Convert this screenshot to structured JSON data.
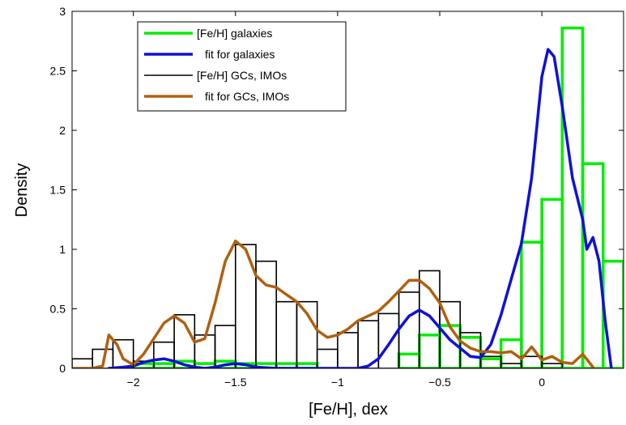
{
  "chart_data": {
    "type": "histogram",
    "xlabel": "[Fe/H], dex",
    "ylabel": "Density",
    "xlim": [
      -2.3,
      0.4
    ],
    "ylim": [
      0,
      3
    ],
    "xticks": [
      {
        "value": -2,
        "label": "−2"
      },
      {
        "value": -1.5,
        "label": "−1.5"
      },
      {
        "value": -1,
        "label": "−1"
      },
      {
        "value": -0.5,
        "label": "−0.5"
      },
      {
        "value": 0,
        "label": "0"
      }
    ],
    "yticks": [
      {
        "value": 0,
        "label": "0"
      },
      {
        "value": 0.5,
        "label": "0.5"
      },
      {
        "value": 1,
        "label": "1"
      },
      {
        "value": 1.5,
        "label": "1.5"
      },
      {
        "value": 2,
        "label": "2"
      },
      {
        "value": 2.5,
        "label": "2.5"
      },
      {
        "value": 3,
        "label": "3"
      }
    ],
    "grid": false,
    "legend_position": "top-left",
    "series": [
      {
        "name": "[Fe/H] galaxies",
        "kind": "histogram",
        "color": "#00ee00",
        "bin_edges": [
          -2.3,
          -2.2,
          -2.1,
          -2.0,
          -1.9,
          -1.8,
          -1.7,
          -1.6,
          -1.5,
          -1.4,
          -1.3,
          -1.2,
          -1.1,
          -1.0,
          -0.9,
          -0.8,
          -0.7,
          -0.6,
          -0.5,
          -0.4,
          -0.3,
          -0.2,
          -0.1,
          0.0,
          0.1,
          0.2,
          0.3,
          0.4
        ],
        "values": [
          0,
          0,
          0,
          0.04,
          0.04,
          0.06,
          0.04,
          0.06,
          0.04,
          0.04,
          0.04,
          0.04,
          0.0,
          0.0,
          0.0,
          0.0,
          0.12,
          0.28,
          0.36,
          0.26,
          0.08,
          0.24,
          1.06,
          1.42,
          2.86,
          1.72,
          0.9
        ]
      },
      {
        "name": "fit for galaxies",
        "kind": "line",
        "color": "#1010d8",
        "x": [
          -2.12,
          -2.05,
          -2.0,
          -1.95,
          -1.9,
          -1.85,
          -1.8,
          -1.75,
          -1.7,
          -1.65,
          -1.6,
          -1.55,
          -1.5,
          -1.45,
          -1.4,
          -1.3,
          -1.2,
          -1.1,
          -1.0,
          -0.9,
          -0.85,
          -0.8,
          -0.75,
          -0.7,
          -0.65,
          -0.6,
          -0.55,
          -0.5,
          -0.45,
          -0.4,
          -0.35,
          -0.3,
          -0.25,
          -0.2,
          -0.15,
          -0.1,
          -0.05,
          0.0,
          0.03,
          0.06,
          0.1,
          0.15,
          0.2,
          0.22,
          0.25,
          0.28,
          0.31,
          0.34
        ],
        "y": [
          0,
          0.01,
          0.02,
          0.05,
          0.07,
          0.08,
          0.06,
          0.03,
          0.01,
          0.0,
          0.01,
          0.03,
          0.04,
          0.03,
          0.01,
          0.0,
          0.0,
          0.0,
          0.0,
          0.0,
          0.02,
          0.08,
          0.2,
          0.33,
          0.44,
          0.49,
          0.44,
          0.34,
          0.24,
          0.17,
          0.1,
          0.09,
          0.2,
          0.45,
          0.75,
          1.05,
          1.6,
          2.45,
          2.68,
          2.62,
          2.2,
          1.6,
          1.25,
          1.0,
          1.1,
          0.9,
          0.4,
          0.0
        ]
      },
      {
        "name": "[Fe/H] GCs, IMOs",
        "kind": "histogram",
        "color": "#000000",
        "bin_edges": [
          -2.3,
          -2.2,
          -2.1,
          -2.0,
          -1.9,
          -1.8,
          -1.7,
          -1.6,
          -1.5,
          -1.4,
          -1.3,
          -1.2,
          -1.1,
          -1.0,
          -0.9,
          -0.8,
          -0.7,
          -0.6,
          -0.5,
          -0.4,
          -0.3,
          -0.2,
          -0.1,
          0.0,
          0.1,
          0.2
        ],
        "values": [
          0.08,
          0.16,
          0.24,
          0.06,
          0.22,
          0.45,
          0.28,
          0.36,
          1.04,
          0.9,
          0.56,
          0.56,
          0.16,
          0.3,
          0.4,
          0.46,
          0.64,
          0.82,
          0.56,
          0.3,
          0.1,
          0.04,
          0.1,
          0.04,
          0.0
        ]
      },
      {
        "name": "fit for GCs, IMOs",
        "kind": "line",
        "color": "#b06010",
        "x": [
          -2.3,
          -2.2,
          -2.15,
          -2.12,
          -2.08,
          -2.05,
          -2.0,
          -1.95,
          -1.9,
          -1.85,
          -1.8,
          -1.75,
          -1.7,
          -1.65,
          -1.6,
          -1.55,
          -1.5,
          -1.45,
          -1.4,
          -1.35,
          -1.3,
          -1.25,
          -1.2,
          -1.15,
          -1.1,
          -1.05,
          -1.0,
          -0.95,
          -0.9,
          -0.85,
          -0.8,
          -0.75,
          -0.7,
          -0.65,
          -0.6,
          -0.55,
          -0.5,
          -0.45,
          -0.4,
          -0.35,
          -0.3,
          -0.25,
          -0.2,
          -0.15,
          -0.1,
          -0.05,
          0.0,
          0.05,
          0.1,
          0.15,
          0.2,
          0.25
        ],
        "y": [
          0.0,
          0.0,
          0.02,
          0.28,
          0.2,
          0.08,
          0.03,
          0.12,
          0.25,
          0.38,
          0.44,
          0.38,
          0.22,
          0.25,
          0.55,
          0.9,
          1.07,
          1.0,
          0.78,
          0.7,
          0.68,
          0.62,
          0.56,
          0.46,
          0.32,
          0.26,
          0.28,
          0.33,
          0.4,
          0.44,
          0.48,
          0.56,
          0.65,
          0.74,
          0.74,
          0.67,
          0.55,
          0.35,
          0.23,
          0.17,
          0.14,
          0.14,
          0.13,
          0.14,
          0.08,
          0.18,
          0.07,
          0.1,
          0.05,
          0.04,
          0.12,
          0.01
        ]
      }
    ]
  }
}
